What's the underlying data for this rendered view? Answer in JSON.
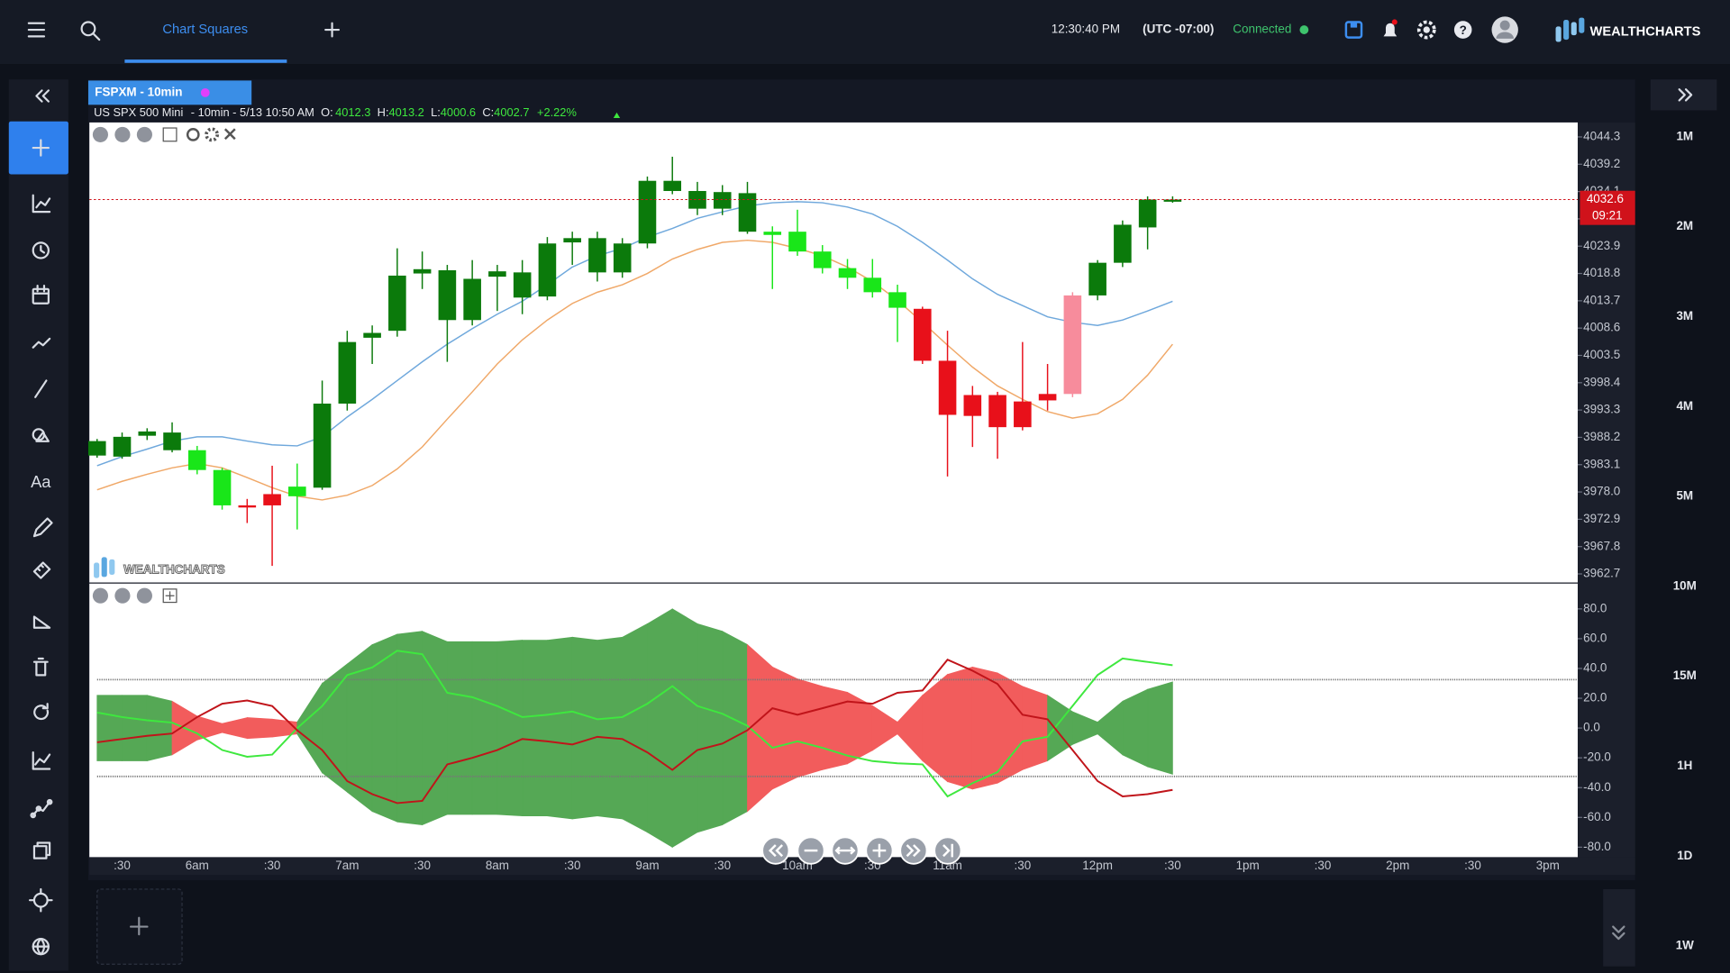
{
  "app": {
    "brand": "WEALTHCHARTS",
    "tab": "Chart Squares",
    "clock": "12:30:40 PM",
    "timezone": "(UTC -07:00)",
    "status": "Connected",
    "chart_tab": "FSPXM - 10min",
    "watermark": "WEALTHCHARTS",
    "timeframes": [
      "1M",
      "2M",
      "3M",
      "4M",
      "5M",
      "10M",
      "15M",
      "1H",
      "1D",
      "1W"
    ]
  },
  "legend": {
    "symbol": "US SPX 500 Mini",
    "details": "- 10min - 5/13 10:50 AM",
    "fields": [
      {
        "label": "O:",
        "value": 4012.3
      },
      {
        "label": "H:",
        "value": 4013.2
      },
      {
        "label": "L:",
        "value": 4000.6
      },
      {
        "label": "C:",
        "value": 4002.7
      }
    ],
    "change": "+2.22%"
  },
  "chart_data": [
    {
      "type": "candlestick",
      "xtick_labels": [
        ":30",
        "6am",
        ":30",
        "7am",
        ":30",
        "8am",
        ":30",
        "9am",
        ":30",
        "10am",
        ":30",
        "11am",
        ":30",
        "12pm",
        ":30",
        "1pm",
        ":30",
        "2pm",
        ":30",
        "3pm"
      ],
      "open": [
        3984.8,
        3984.6,
        3988.5,
        3985.8,
        3985.8,
        3982.1,
        3975.5,
        3977.6,
        3979.0,
        3978.8,
        3994.5,
        4006.8,
        4008.1,
        4018.8,
        4010.1,
        4010.1,
        4018.2,
        4014.3,
        4014.5,
        4024.6,
        4019.0,
        4019.0,
        4024.4,
        4034.2,
        4030.9,
        4030.9,
        4026.6,
        4026.6,
        4026.6,
        4022.9,
        4019.8,
        4018.0,
        4015.3,
        4012.2,
        4002.5,
        3996.1,
        3996.1,
        3994.9,
        3996.3,
        3996.3,
        4014.7,
        4020.8,
        4027.4,
        4032.2
      ],
      "high": [
        3987.9,
        3989.1,
        3989.9,
        3991.0,
        3986.6,
        3982.5,
        3976.7,
        3982.9,
        3983.3,
        3998.8,
        4008.1,
        4009.1,
        4023.5,
        4022.9,
        4020.4,
        4021.3,
        4020.4,
        4021.3,
        4025.6,
        4026.6,
        4026.6,
        4025.4,
        4036.9,
        4040.6,
        4035.9,
        4035.3,
        4035.9,
        4027.6,
        4030.7,
        4024.1,
        4021.5,
        4021.5,
        4016.7,
        4012.6,
        4008.1,
        3997.8,
        3996.7,
        4006.0,
        4001.9,
        4015.3,
        4021.3,
        4028.7,
        4033.2,
        4033.2
      ],
      "low": [
        3984.4,
        3984.2,
        3987.7,
        3985.4,
        3981.3,
        3974.7,
        3972.2,
        3964.2,
        3971.0,
        3978.4,
        3993.2,
        4001.9,
        4007.0,
        4015.9,
        4002.3,
        4009.1,
        4011.8,
        4011.2,
        4013.8,
        4020.4,
        4017.3,
        4018.0,
        4023.5,
        4033.6,
        4029.7,
        4029.7,
        4026.2,
        4015.9,
        4022.1,
        4018.8,
        4015.9,
        4014.3,
        4006.0,
        4001.9,
        3980.9,
        3986.4,
        3984.2,
        3989.5,
        3993.2,
        3995.7,
        4013.8,
        4020.0,
        4023.3,
        4032.0
      ],
      "close": [
        3987.5,
        3988.3,
        3989.3,
        3989.1,
        3982.1,
        3975.5,
        3975.1,
        3975.5,
        3977.2,
        3994.5,
        4006.0,
        4007.7,
        4018.4,
        4019.6,
        4019.4,
        4017.8,
        4019.2,
        4019.0,
        4024.4,
        4025.4,
        4025.4,
        4024.4,
        4036.1,
        4036.1,
        4034.2,
        4034.0,
        4033.8,
        4026.0,
        4022.9,
        4019.8,
        4018.0,
        4015.3,
        4012.4,
        4002.5,
        3992.4,
        3992.2,
        3990.1,
        3990.1,
        3995.1,
        4014.7,
        4020.8,
        4027.9,
        4032.6,
        4032.6
      ],
      "colors": [
        "#0b7a0b",
        "#0b7a0b",
        "#0b7a0b",
        "#0b7a0b",
        "#19e619",
        "#19e619",
        "#e8101a",
        "#e8101a",
        "#19e619",
        "#0b7a0b",
        "#0b7a0b",
        "#0b7a0b",
        "#0b7a0b",
        "#0b7a0b",
        "#0b7a0b",
        "#0b7a0b",
        "#0b7a0b",
        "#0b7a0b",
        "#0b7a0b",
        "#0b7a0b",
        "#0b7a0b",
        "#0b7a0b",
        "#0b7a0b",
        "#0b7a0b",
        "#0b7a0b",
        "#0b7a0b",
        "#0b7a0b",
        "#19e619",
        "#19e619",
        "#19e619",
        "#19e619",
        "#19e619",
        "#19e619",
        "#e8101a",
        "#e8101a",
        "#e8101a",
        "#e8101a",
        "#e8101a",
        "#e8101a",
        "#f78c9c",
        "#0b7a0b",
        "#0b7a0b",
        "#0b7a0b",
        "#0b7a0b"
      ],
      "series": [
        {
          "color": "#6fa8dc",
          "values": [
            3982.9,
            3984.6,
            3986.0,
            3987.5,
            3988.3,
            3988.3,
            3987.5,
            3986.8,
            3986.6,
            3988.3,
            3992.0,
            3995.3,
            3998.8,
            4002.3,
            4005.6,
            4008.5,
            4011.2,
            4013.6,
            4016.7,
            4020.0,
            4022.1,
            4023.5,
            4025.6,
            4027.2,
            4029.1,
            4030.3,
            4031.4,
            4032.0,
            4032.2,
            4032.0,
            4031.2,
            4029.9,
            4027.6,
            4024.6,
            4021.3,
            4017.8,
            4014.9,
            4012.8,
            4010.7,
            4009.7,
            4009.1,
            4010.1,
            4011.8,
            4013.6
          ]
        },
        {
          "color": "#f0a868",
          "values": [
            3978.4,
            3980.0,
            3981.3,
            3982.5,
            3983.3,
            3982.5,
            3980.7,
            3978.8,
            3977.2,
            3976.5,
            3977.4,
            3979.2,
            3982.3,
            3986.4,
            3991.6,
            3996.7,
            4001.9,
            4006.4,
            4010.1,
            4013.2,
            4015.3,
            4016.7,
            4018.8,
            4021.5,
            4023.3,
            4024.6,
            4025.0,
            4024.6,
            4023.5,
            4022.1,
            4020.0,
            4017.3,
            4013.8,
            4009.7,
            4005.4,
            4001.3,
            3997.8,
            3995.3,
            3993.0,
            3991.8,
            3992.6,
            3995.3,
            3999.8,
            4005.6
          ]
        }
      ],
      "last_price": 4032.6,
      "last_price_color": "#d0121b",
      "countdown": "09:21",
      "ylim": [
        3961.1,
        4047.0
      ],
      "yticks": [
        4044.3,
        4039.2,
        4034.1,
        {
          "value": 4029.0,
          "label": "4029.0"
        },
        4023.9,
        4018.8,
        4013.7,
        4008.6,
        4003.5,
        3998.4,
        3993.3,
        3988.2,
        3983.1,
        {
          "value": 3978.0,
          "label": "3978.0"
        },
        3972.9,
        3967.8,
        3962.7
      ]
    },
    {
      "type": "line",
      "series": [
        {
          "color": "#3ee83e",
          "values": [
            10.4,
            7.4,
            5.2,
            3.7,
            -3.7,
            -14.8,
            -19.3,
            -17.8,
            0,
            14.8,
            35.6,
            40.7,
            51.9,
            49.6,
            23.7,
            20.7,
            14.8,
            7.4,
            8.9,
            11.1,
            5.9,
            7.4,
            16.3,
            28.1,
            14.8,
            9.6,
            1.5,
            -13.3,
            -8.9,
            -13.3,
            -18.5,
            -22.2,
            -23.7,
            -24.4,
            -45.9,
            -37.0,
            -29.6,
            -8.9,
            -5.9,
            14.8,
            35.6,
            46.7,
            44.4,
            42.2
          ]
        },
        {
          "color": "#c0141a",
          "values": [
            -9.6,
            -7.4,
            -5.2,
            -3.7,
            7.4,
            16.3,
            18.5,
            14.8,
            -1.5,
            -14.8,
            -35.6,
            -44.4,
            -50.4,
            -48.9,
            -24.4,
            -20.0,
            -14.8,
            -7.4,
            -8.9,
            -11.1,
            -5.9,
            -7.4,
            -16.3,
            -28.1,
            -14.8,
            -10.4,
            -1.5,
            13.3,
            8.9,
            13.3,
            17.8,
            16.3,
            23.7,
            25.2,
            45.9,
            38.5,
            29.6,
            8.9,
            5.9,
            -14.8,
            -35.6,
            -45.9,
            -44.4,
            -41.5
          ]
        }
      ],
      "cloud": [
        22,
        22,
        22,
        18,
        8,
        3,
        7,
        6,
        4,
        30,
        43,
        56,
        63,
        65,
        58,
        58,
        58,
        59,
        59,
        61,
        59,
        61,
        70,
        80,
        70,
        65,
        56,
        41,
        33,
        28,
        24,
        15,
        4,
        22,
        36,
        41,
        37,
        28,
        22,
        11,
        4,
        18,
        26,
        31
      ],
      "cloud_colors": {
        "up": "#55a855",
        "down": "#f25c5c"
      },
      "levels": [
        32.5,
        -32.5
      ],
      "ylim": [
        -86.7,
        97.0
      ],
      "yticks": [
        {
          "value": 80,
          "label": "80.0"
        },
        {
          "value": 60,
          "label": "60.0"
        },
        {
          "value": 40,
          "label": "40.0"
        },
        {
          "value": 20,
          "label": "20.0"
        },
        {
          "value": 0,
          "label": "0.0"
        },
        {
          "value": -20,
          "label": "-20.0"
        },
        {
          "value": -40,
          "label": "-40.0"
        },
        {
          "value": -60,
          "label": "-60.0"
        },
        {
          "value": -80,
          "label": "-80.0"
        }
      ]
    }
  ]
}
